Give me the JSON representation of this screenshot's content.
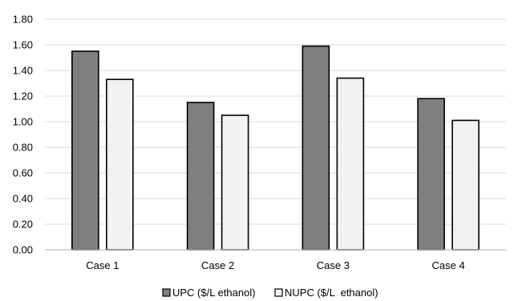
{
  "chart_data": {
    "type": "bar",
    "title": "",
    "xlabel": "",
    "ylabel": "",
    "categories": [
      "Case 1",
      "Case 2",
      "Case 3",
      "Case 4"
    ],
    "series": [
      {
        "name": "UPC ($/L ethanol)",
        "values": [
          1.55,
          1.15,
          1.59,
          1.18
        ],
        "color": "#7f7f7f"
      },
      {
        "name": "NUPC ($/L  ethanol)",
        "values": [
          1.33,
          1.05,
          1.34,
          1.01
        ],
        "color": "#f2f2f2"
      }
    ],
    "ylim": [
      0,
      1.8
    ],
    "yticks": [
      "0.00",
      "0.20",
      "0.40",
      "0.60",
      "0.80",
      "1.00",
      "1.20",
      "1.40",
      "1.60",
      "1.80"
    ],
    "grid": true,
    "legend_position": "bottom",
    "gridline_color": "#d9d9d9",
    "bar_border_color": "#000000"
  }
}
